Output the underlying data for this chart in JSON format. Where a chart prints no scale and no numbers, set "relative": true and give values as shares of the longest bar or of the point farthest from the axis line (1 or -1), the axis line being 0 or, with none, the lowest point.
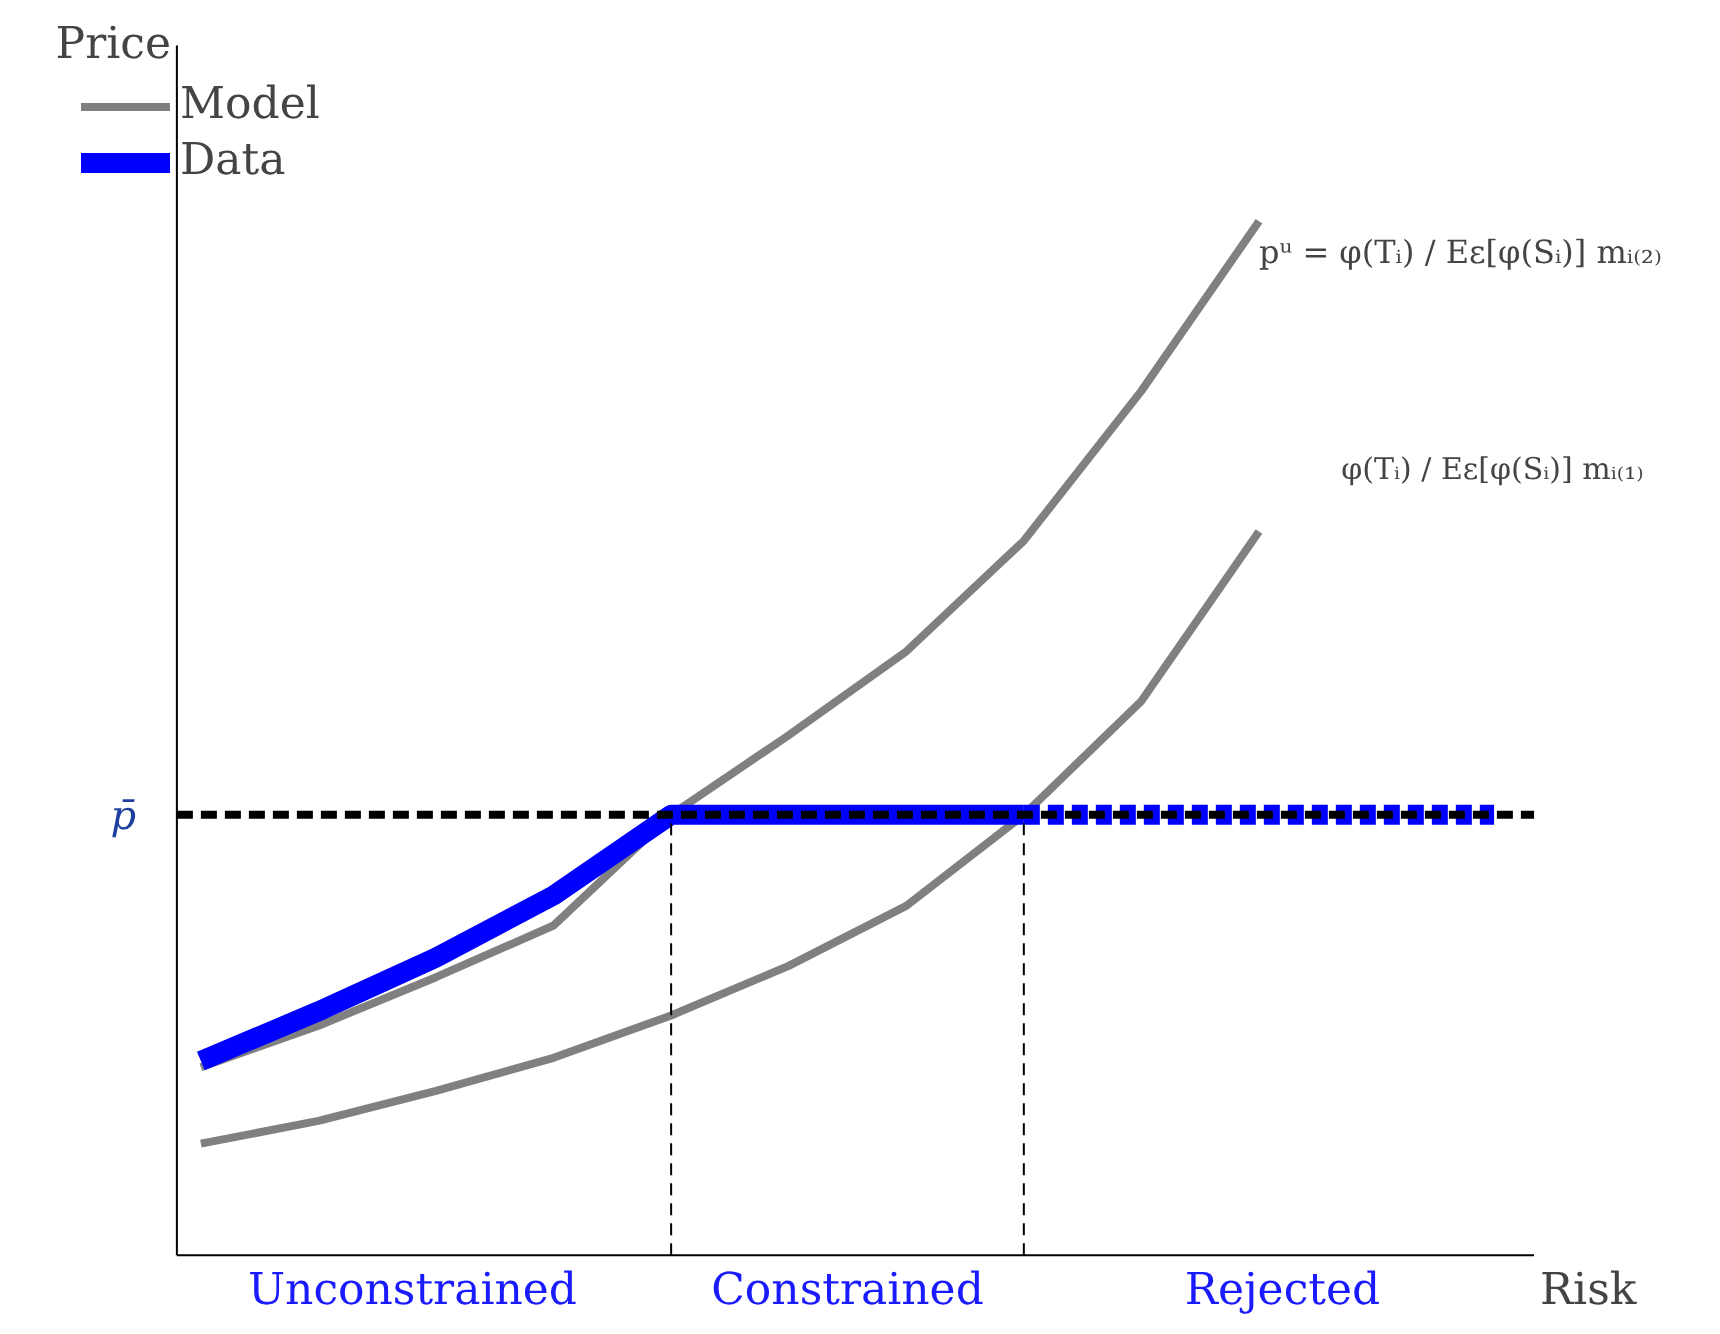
{
  "chart_data": {
    "type": "line",
    "relative": true,
    "xlabel": "Risk",
    "ylabel": "Price",
    "categories": [
      null,
      null,
      null,
      null,
      null,
      null,
      null,
      null,
      null,
      null,
      null,
      null
    ],
    "series": [
      {
        "name": "Model",
        "color": "#808080",
        "values": [
          0.182,
          0.222,
          0.269,
          0.319,
          0.426,
          0.503,
          0.584,
          0.691,
          0.836,
          1.0,
          null,
          null
        ]
      },
      {
        "color": "#808080",
        "values": [
          0.108,
          0.13,
          0.159,
          0.191,
          0.232,
          0.28,
          0.338,
          0.426,
          0.536,
          0.7,
          null,
          null
        ]
      },
      {
        "name": "Data",
        "color": "#0000ff",
        "values": [
          0.188,
          0.236,
          0.288,
          0.348,
          0.426,
          0.426,
          0.426,
          0.426,
          null,
          null,
          null,
          null
        ]
      },
      {
        "color": "#0000ff",
        "line_style": "dashed",
        "values": [
          null,
          null,
          null,
          null,
          null,
          null,
          null,
          0.426,
          0.426,
          0.426,
          0.426,
          0.426
        ]
      }
    ],
    "ref_lines": [
      {
        "axis": "y",
        "value": 0.426,
        "label": "p̄",
        "color": "#000000",
        "line_style": "dashed"
      }
    ],
    "annotations": [
      "pᵘ = φ(Tᵢ) / Eε[φ(Sᵢ)] mᵢ₍₂₎",
      "φ(Tᵢ) / Eε[φ(Sᵢ)] mᵢ₍₁₎",
      "Unconstrained",
      "Constrained",
      "Rejected"
    ],
    "legend": "top left",
    "marker": "none",
    "line_style": "solid"
  }
}
